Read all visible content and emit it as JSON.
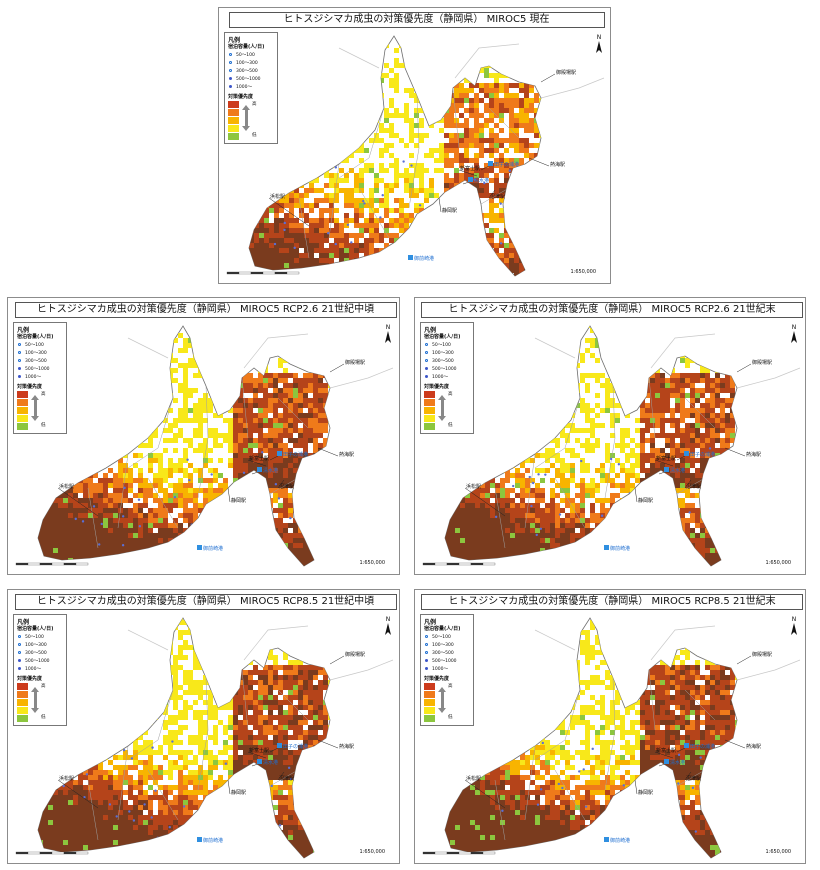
{
  "legend": {
    "title": "凡例",
    "capacity_title": "宿泊容量(人/日)",
    "capacity_items": [
      "50～100",
      "100～300",
      "300～500",
      "500～1000",
      "1000～"
    ],
    "priority_title": "対策優先度",
    "high_label": "高",
    "low_label": "低",
    "priority_colors": [
      "#cc3b1c",
      "#ef7a1a",
      "#f8b400",
      "#f8e81a",
      "#8cc63e"
    ]
  },
  "map_labels": {
    "atami": "熱海駅",
    "shinfuji": "新富士駅",
    "numazu": "沼津駅",
    "shizuoka": "静岡駅",
    "hamamatsu": "浜松駅",
    "gotemba": "御殿場駅",
    "tagonoura": "田子の浦港",
    "shimizu": "清水港",
    "omaezaki": "御前崎港"
  },
  "north_label": "N",
  "scale_label": "1:650,000",
  "panels": [
    {
      "title": "ヒトスジシマカ成虫の対策優先度（静岡県） MIROC5 現在",
      "intensity": 0.35
    },
    {
      "title": "ヒトスジシマカ成虫の対策優先度（静岡県） MIROC5 RCP2.6 21世紀中頃",
      "intensity": 0.65
    },
    {
      "title": "ヒトスジシマカ成虫の対策優先度（静岡県） MIROC5 RCP2.6 21世紀末",
      "intensity": 0.6
    },
    {
      "title": "ヒトスジシマカ成虫の対策優先度（静岡県） MIROC5 RCP8.5 21世紀中頃",
      "intensity": 0.7
    },
    {
      "title": "ヒトスジシマカ成虫の対策優先度（静岡県） MIROC5 RCP8.5 21世紀末",
      "intensity": 0.75
    }
  ]
}
